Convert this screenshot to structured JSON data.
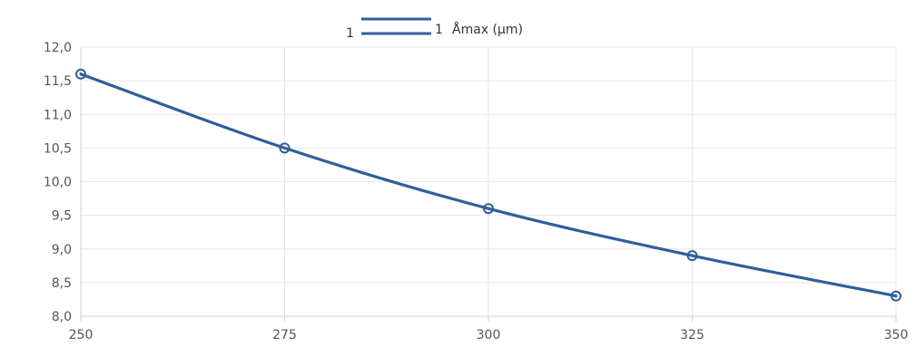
{
  "chart_data": {
    "type": "line",
    "x": [
      250,
      275,
      300,
      325,
      350
    ],
    "series": [
      {
        "name": "Åmax (µm)",
        "values": [
          11.6,
          10.5,
          9.6,
          8.9,
          8.3
        ],
        "color": "#2f5f9a"
      }
    ],
    "xlim": [
      250,
      350
    ],
    "ylim": [
      8.0,
      12.0
    ],
    "x_ticks": [
      "250",
      "275",
      "300",
      "325",
      "350"
    ],
    "y_ticks": [
      "12,0",
      "11,5",
      "11,0",
      "10,5",
      "10,0",
      "9,5",
      "9,0",
      "8,5",
      "8,0"
    ],
    "grid": true,
    "legend": {
      "position": "top-center",
      "marker_left": "1",
      "marker_right": "1"
    }
  }
}
